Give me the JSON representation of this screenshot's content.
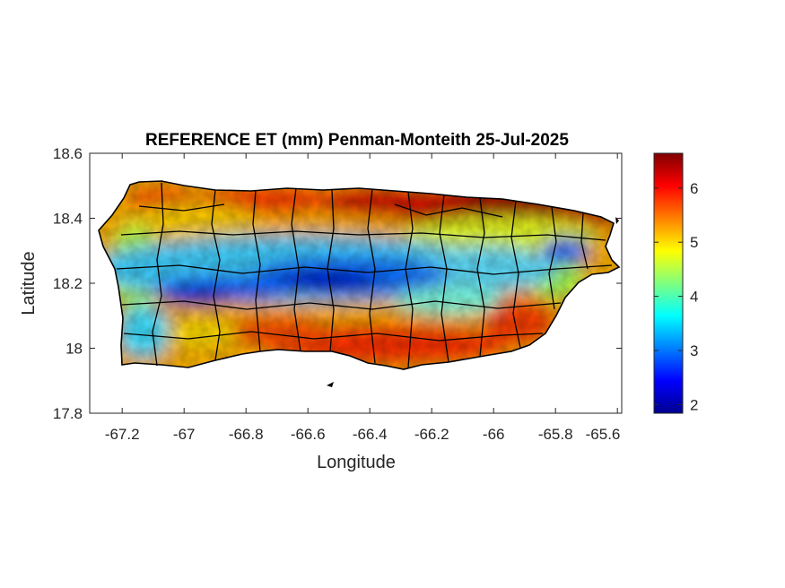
{
  "map": {
    "title": "REFERENCE ET (mm) Penman-Monteith 25-Jul-2025",
    "xlabel": "Longitude",
    "ylabel": "Latitude",
    "x_ticks": [
      "-67.2",
      "-67",
      "-66.8",
      "-66.6",
      "-66.4",
      "-66.2",
      "-66",
      "-65.8",
      "-65.6"
    ],
    "y_ticks": [
      "18.6",
      "18.4",
      "18.2",
      "18",
      "17.8"
    ],
    "x_range": [
      -67.3,
      -65.58
    ],
    "y_range": [
      17.8,
      18.6
    ],
    "colorbar": {
      "ticks": [
        "6",
        "5",
        "4",
        "3",
        "2"
      ],
      "range": [
        1.85,
        6.65
      ],
      "colormap": "jet"
    },
    "region": "Puerto Rico",
    "colors": {
      "high": "#800000",
      "mid": "#ffff00",
      "low": "#00008f",
      "border": "#000000"
    }
  }
}
